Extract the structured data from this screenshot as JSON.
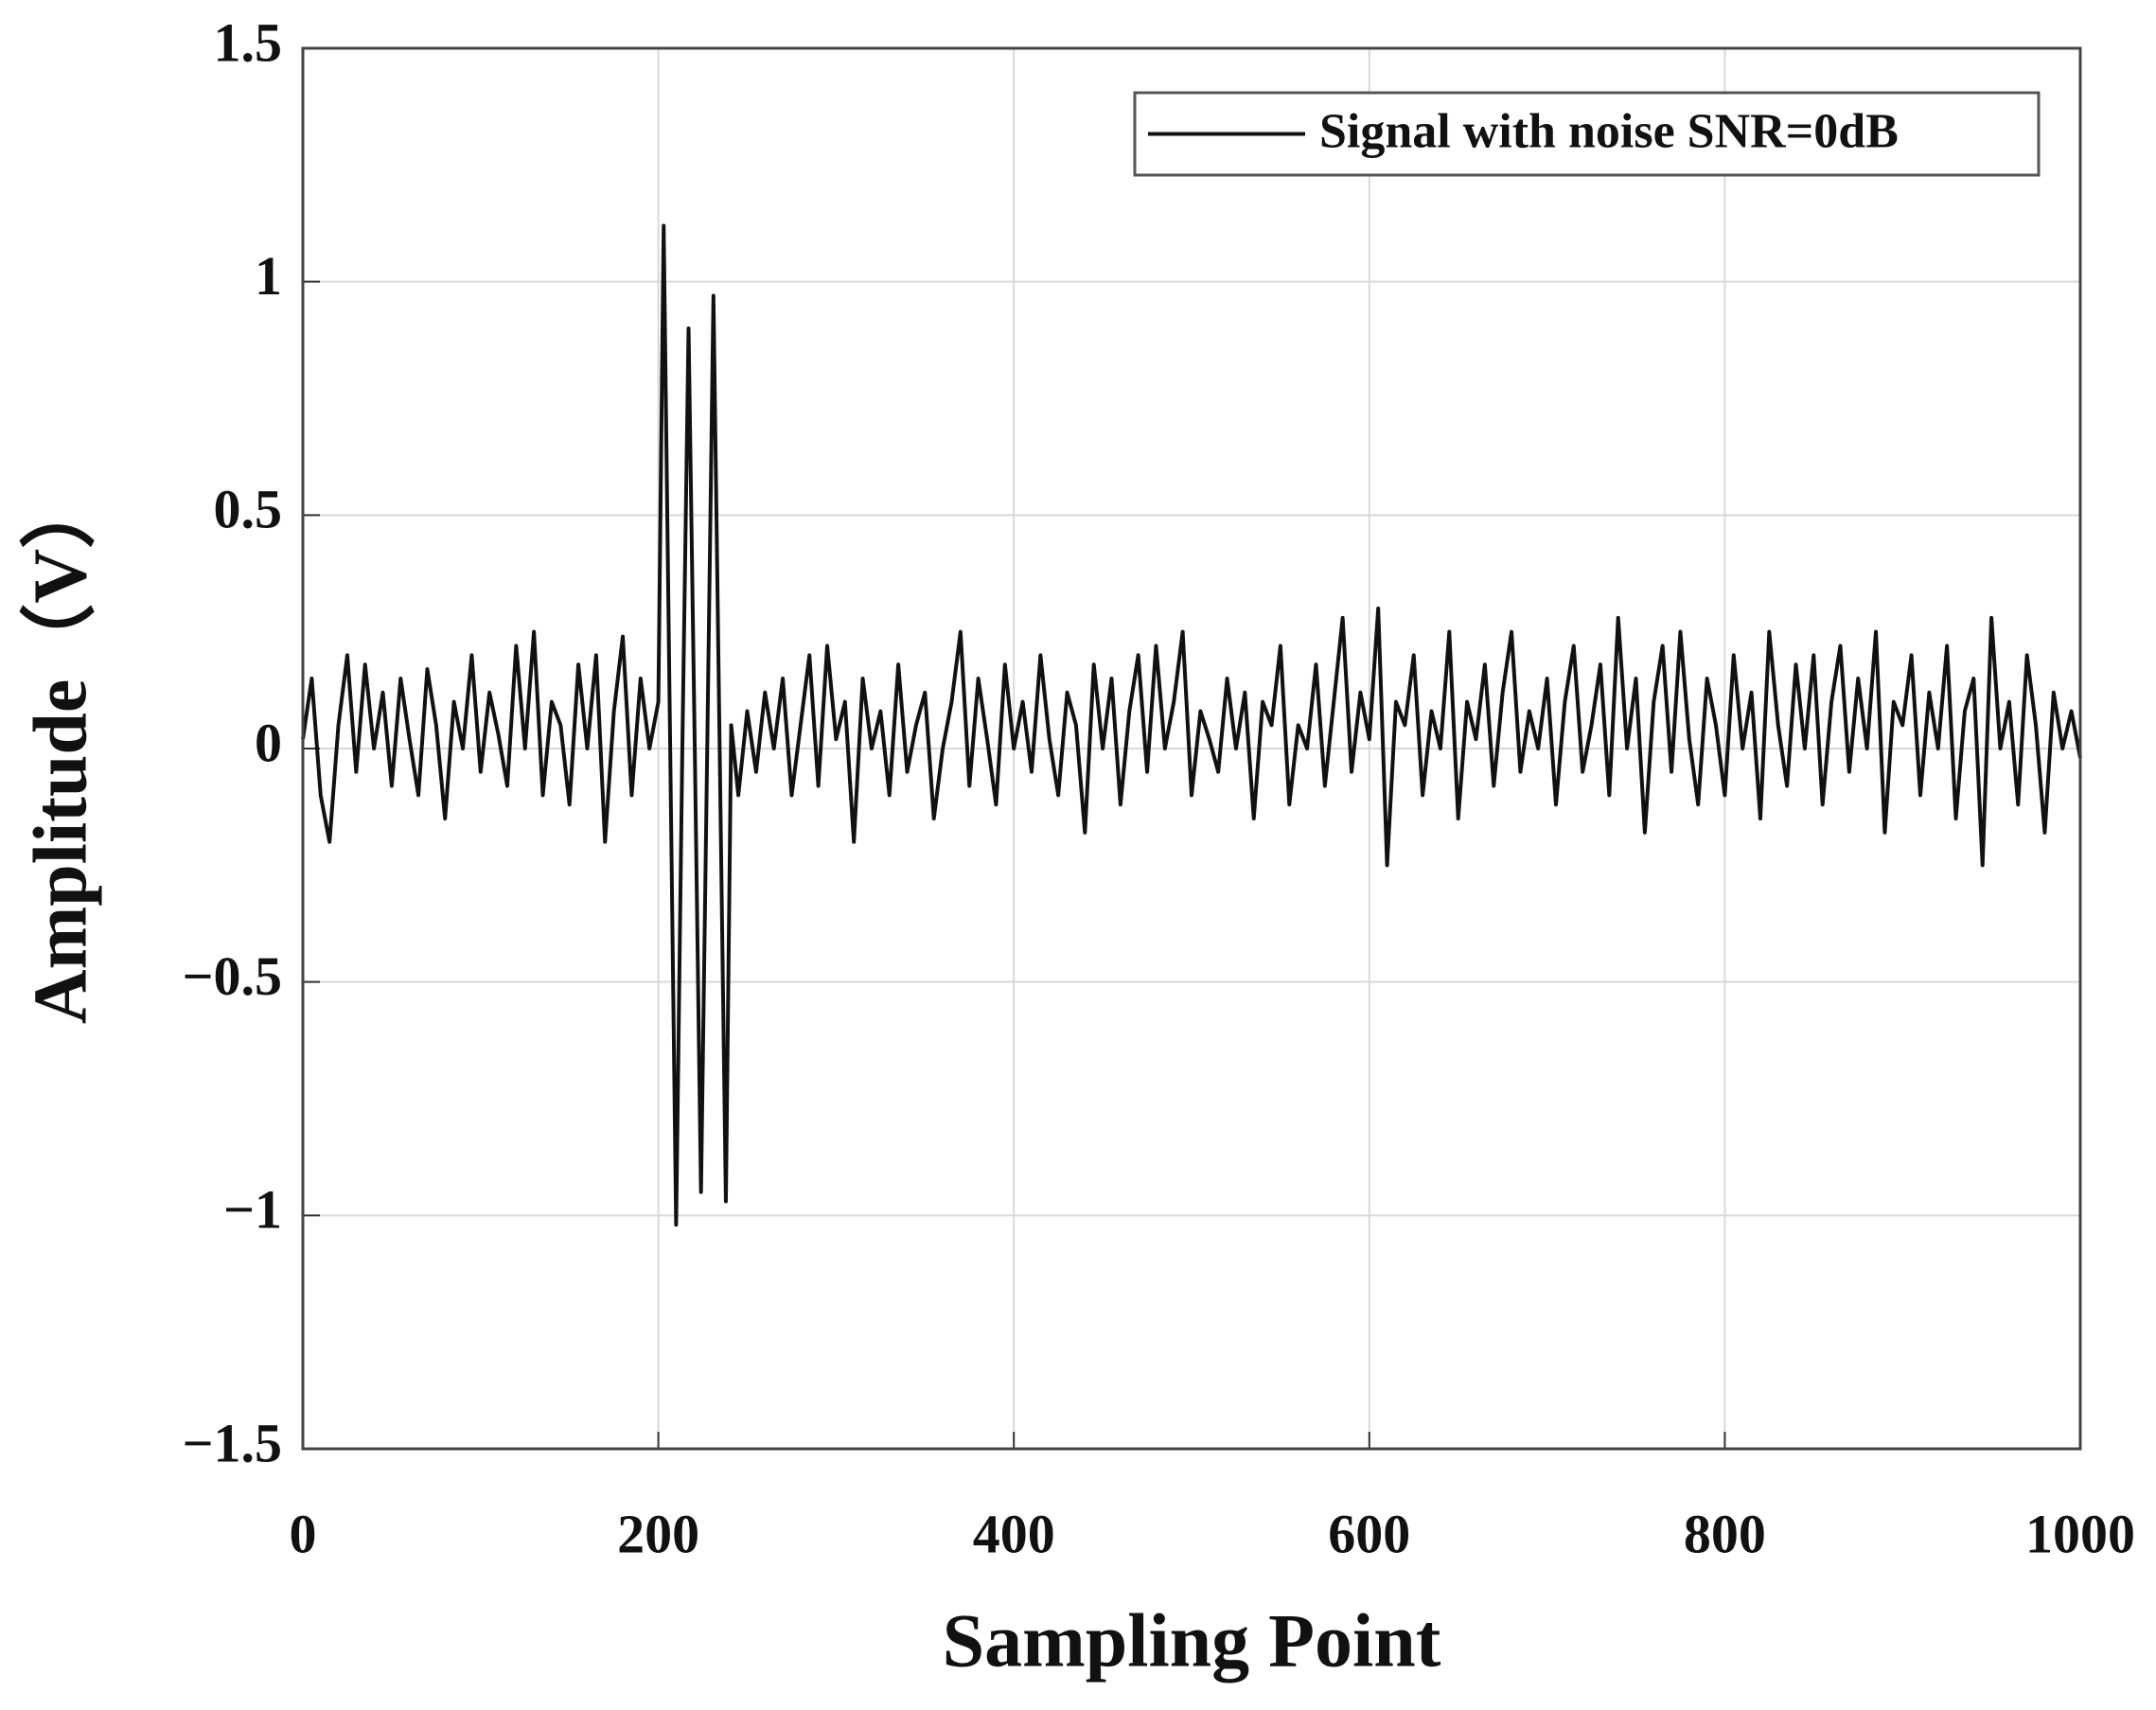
{
  "chart_data": {
    "type": "line",
    "xlabel": "Sampling Point",
    "ylabel": "Amplitude（V）",
    "xlim": [
      0,
      1000
    ],
    "xticks": [
      0,
      200,
      400,
      600,
      800,
      1000
    ],
    "ylim": [
      -1.5,
      1.5
    ],
    "yticks": [
      {
        "value": -1.5,
        "label": "−1.5"
      },
      {
        "value": -1,
        "label": "−1"
      },
      {
        "value": -0.5,
        "label": "−0.5"
      },
      0,
      0.5,
      1,
      1.5
    ],
    "grid": true,
    "legend": "upper right",
    "x": [
      0,
      5,
      10,
      15,
      20,
      25,
      30,
      35,
      40,
      45,
      50,
      55,
      60,
      65,
      70,
      75,
      80,
      85,
      90,
      95,
      100,
      105,
      110,
      115,
      120,
      125,
      130,
      135,
      140,
      145,
      150,
      155,
      160,
      165,
      170,
      175,
      180,
      185,
      190,
      195,
      200,
      203,
      206.5,
      210,
      213.5,
      217,
      220.5,
      224,
      227.5,
      231,
      234.5,
      238,
      241,
      245,
      250,
      255,
      260,
      265,
      270,
      275,
      280,
      285,
      290,
      295,
      300,
      305,
      310,
      315,
      320,
      325,
      330,
      335,
      340,
      345,
      350,
      355,
      360,
      365,
      370,
      375,
      380,
      385,
      390,
      395,
      400,
      405,
      410,
      415,
      420,
      425,
      430,
      435,
      440,
      445,
      450,
      455,
      460,
      465,
      470,
      475,
      480,
      485,
      490,
      495,
      500,
      505,
      510,
      515,
      520,
      525,
      530,
      535,
      540,
      545,
      550,
      555,
      560,
      565,
      570,
      575,
      580,
      585,
      590,
      595,
      600,
      605,
      610,
      615,
      620,
      625,
      630,
      635,
      640,
      645,
      650,
      655,
      660,
      665,
      670,
      675,
      680,
      685,
      690,
      695,
      700,
      705,
      710,
      715,
      720,
      725,
      730,
      735,
      740,
      745,
      750,
      755,
      760,
      765,
      770,
      775,
      780,
      785,
      790,
      795,
      800,
      805,
      810,
      815,
      820,
      825,
      830,
      835,
      840,
      845,
      850,
      855,
      860,
      865,
      870,
      875,
      880,
      885,
      890,
      895,
      900,
      905,
      910,
      915,
      920,
      925,
      930,
      935,
      940,
      945,
      950,
      955,
      960,
      965,
      970,
      975,
      980,
      985,
      990,
      995,
      1000
    ],
    "series": [
      {
        "name": "Signal with noise SNR=0dB",
        "color": "#111111",
        "values": [
          0.02,
          0.15,
          -0.1,
          -0.2,
          0.05,
          0.2,
          -0.05,
          0.18,
          0.0,
          0.12,
          -0.08,
          0.15,
          0.02,
          -0.1,
          0.17,
          0.05,
          -0.15,
          0.1,
          0.0,
          0.2,
          -0.05,
          0.12,
          0.03,
          -0.08,
          0.22,
          0.0,
          0.25,
          -0.1,
          0.1,
          0.05,
          -0.12,
          0.18,
          0.0,
          0.2,
          -0.2,
          0.08,
          0.24,
          -0.1,
          0.15,
          0.0,
          0.1,
          1.12,
          0.05,
          -1.02,
          0.0,
          0.9,
          0.0,
          -0.95,
          0.0,
          0.97,
          0.0,
          -0.97,
          0.05,
          -0.1,
          0.08,
          -0.05,
          0.12,
          0.0,
          0.15,
          -0.1,
          0.05,
          0.2,
          -0.08,
          0.22,
          0.02,
          0.1,
          -0.2,
          0.15,
          0.0,
          0.08,
          -0.1,
          0.18,
          -0.05,
          0.05,
          0.12,
          -0.15,
          0.0,
          0.1,
          0.25,
          -0.08,
          0.15,
          0.02,
          -0.12,
          0.18,
          0.0,
          0.1,
          -0.05,
          0.2,
          0.02,
          -0.1,
          0.12,
          0.05,
          -0.18,
          0.18,
          0.0,
          0.15,
          -0.12,
          0.08,
          0.2,
          -0.05,
          0.22,
          0.0,
          0.1,
          0.25,
          -0.1,
          0.08,
          0.02,
          -0.05,
          0.15,
          0.0,
          0.12,
          -0.15,
          0.1,
          0.05,
          0.22,
          -0.12,
          0.05,
          0.0,
          0.18,
          -0.08,
          0.1,
          0.28,
          -0.05,
          0.12,
          0.02,
          0.3,
          -0.25,
          0.1,
          0.05,
          0.2,
          -0.1,
          0.08,
          0.0,
          0.25,
          -0.15,
          0.1,
          0.02,
          0.18,
          -0.08,
          0.12,
          0.25,
          -0.05,
          0.08,
          0.0,
          0.15,
          -0.12,
          0.1,
          0.22,
          -0.05,
          0.05,
          0.18,
          -0.1,
          0.28,
          0.0,
          0.15,
          -0.18,
          0.1,
          0.22,
          -0.05,
          0.25,
          0.02,
          -0.12,
          0.15,
          0.05,
          -0.1,
          0.2,
          0.0,
          0.12,
          -0.15,
          0.25,
          0.05,
          -0.08,
          0.18,
          0.0,
          0.2,
          -0.12,
          0.1,
          0.22,
          -0.05,
          0.15,
          0.0,
          0.25,
          -0.18,
          0.1,
          0.05,
          0.2,
          -0.1,
          0.12,
          0.0,
          0.22,
          -0.15,
          0.08,
          0.15,
          -0.25,
          0.28,
          0.0,
          0.1,
          -0.12,
          0.2,
          0.05,
          -0.18,
          0.12,
          0.0,
          0.08,
          -0.02
        ]
      }
    ]
  }
}
